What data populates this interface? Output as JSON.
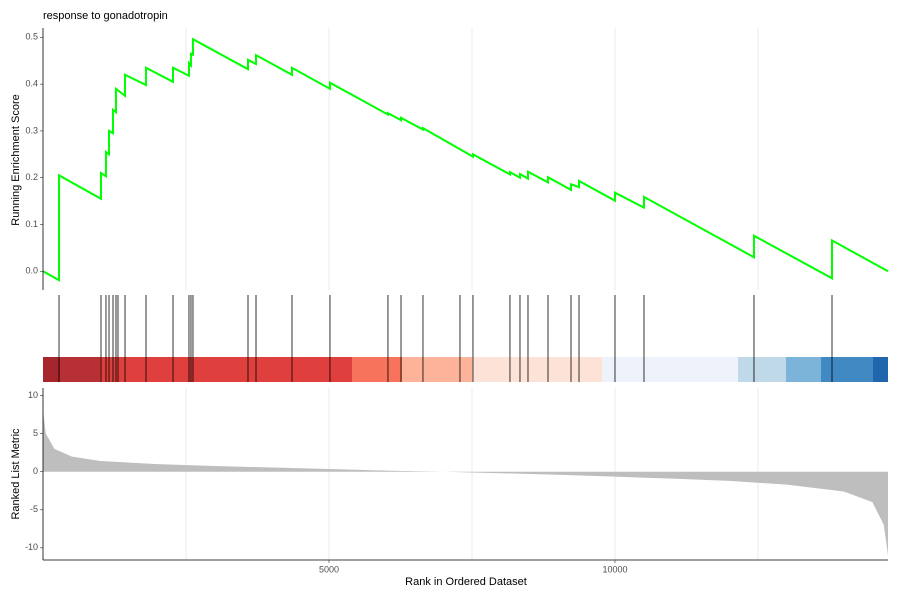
{
  "chart_data": [
    {
      "type": "line",
      "title": "response to gonadotropin",
      "y_label": "Running Enrichment Score",
      "color": "#00ff00",
      "xlim": [
        0,
        14773
      ],
      "ylim": [
        -0.04,
        0.52
      ],
      "yticks": [
        {
          "value": 0,
          "label": "0.0"
        },
        0.1,
        0.2,
        0.3,
        0.4,
        0.5
      ],
      "xgrid": [
        2500,
        5000,
        7500,
        10000,
        12500
      ],
      "x": [
        0,
        280,
        280,
        1014,
        1014,
        1101,
        1101,
        1154,
        1154,
        1224,
        1224,
        1276,
        1276,
        1434,
        1434,
        1801,
        1801,
        2273,
        2273,
        2552,
        2552,
        2587,
        2587,
        2622,
        2622,
        3584,
        3584,
        3724,
        3724,
        4353,
        4353,
        5017,
        5017,
        6031,
        6031,
        6259,
        6259,
        6643,
        6643,
        7517,
        7517,
        8164,
        8164,
        8339,
        8339,
        8479,
        8479,
        8829,
        8829,
        9231,
        9231,
        9371,
        9371,
        10000,
        10000,
        10507,
        10507,
        12430,
        12430,
        13794,
        13794,
        14773
      ],
      "values": [
        0.0,
        -0.019,
        0.205,
        0.155,
        0.21,
        0.203,
        0.255,
        0.25,
        0.3,
        0.295,
        0.345,
        0.34,
        0.39,
        0.375,
        0.42,
        0.398,
        0.435,
        0.405,
        0.435,
        0.418,
        0.445,
        0.44,
        0.465,
        0.463,
        0.496,
        0.432,
        0.452,
        0.443,
        0.462,
        0.42,
        0.435,
        0.39,
        0.403,
        0.335,
        0.338,
        0.323,
        0.328,
        0.303,
        0.306,
        0.245,
        0.25,
        0.207,
        0.212,
        0.2,
        0.208,
        0.198,
        0.213,
        0.19,
        0.201,
        0.174,
        0.186,
        0.18,
        0.193,
        0.151,
        0.168,
        0.136,
        0.159,
        0.03,
        0.076,
        -0.015,
        0.066,
        0.0
      ]
    },
    {
      "type": "rug",
      "color": "#000000",
      "xlim": [
        0,
        14773
      ],
      "x": [
        280,
        1014,
        1101,
        1154,
        1224,
        1276,
        1311,
        1434,
        1801,
        2273,
        2552,
        2587,
        2622,
        3584,
        3724,
        4353,
        5017,
        6031,
        6259,
        6643,
        7290,
        7517,
        8164,
        8339,
        8479,
        8829,
        9231,
        9371,
        10000,
        10507,
        12430,
        13794
      ]
    },
    {
      "type": "area",
      "y_label": "Ranked List Metric",
      "x_label": "Rank in Ordered Dataset",
      "color": "#bebebe",
      "xlim": [
        0,
        14773
      ],
      "ylim": [
        -11.6,
        11
      ],
      "yticks": [
        -10,
        -5,
        0,
        5,
        10
      ],
      "xticks": [
        5000,
        10000
      ],
      "xgrid": [
        2500,
        5000,
        7500,
        10000,
        12500
      ],
      "x": [
        0,
        50,
        200,
        500,
        1000,
        2000,
        3000,
        4000,
        5000,
        6000,
        7000,
        8000,
        9000,
        10000,
        11000,
        12000,
        13000,
        14000,
        14500,
        14700,
        14773
      ],
      "values": [
        8,
        5,
        3,
        2,
        1.4,
        1.0,
        0.75,
        0.55,
        0.35,
        0.15,
        0,
        -0.2,
        -0.4,
        -0.65,
        -0.9,
        -1.2,
        -1.7,
        -2.6,
        -4,
        -7,
        -11
      ]
    }
  ]
}
